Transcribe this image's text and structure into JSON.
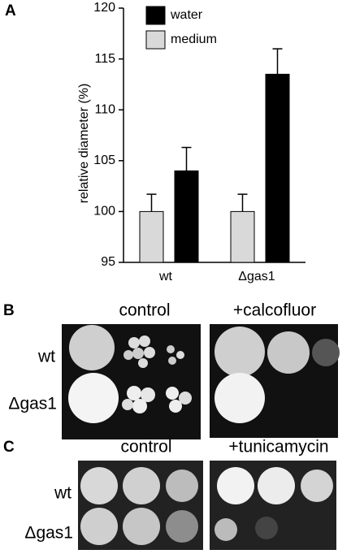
{
  "chart_data": {
    "type": "bar",
    "ylabel": "relative diameter (%)",
    "categories": [
      "wt",
      "Δgas1"
    ],
    "series": [
      {
        "name": "water",
        "color": "#000000",
        "values": [
          104,
          113.5
        ],
        "errors": [
          2.3,
          2.5
        ]
      },
      {
        "name": "medium",
        "color": "#d9d9d9",
        "values": [
          100,
          100
        ],
        "errors": [
          1.7,
          1.7
        ]
      }
    ],
    "ylim": [
      95,
      120
    ],
    "yticks": [
      95,
      100,
      105,
      110,
      115,
      120
    ]
  },
  "panel_labels": [
    "A",
    "B",
    "C"
  ],
  "panel_b": {
    "columns": [
      "control",
      "+calcofluor"
    ],
    "rows": [
      "wt",
      "Δgas1"
    ]
  },
  "panel_c": {
    "columns": [
      "control",
      "+tunicamycin"
    ],
    "rows": [
      "wt",
      "Δgas1"
    ]
  }
}
